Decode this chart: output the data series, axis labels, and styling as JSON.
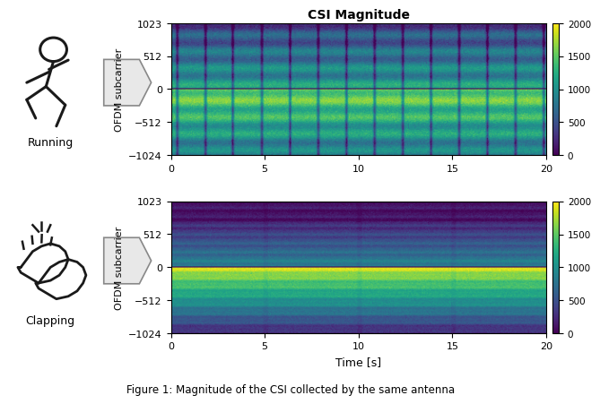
{
  "title": "CSI Magnitude",
  "xlabel": "Time [s]",
  "ylabel": "OFDM subcarrier",
  "xlim": [
    0,
    20
  ],
  "ylim": [
    -1024,
    1023
  ],
  "yticks": [
    -1024,
    -512,
    0,
    512,
    1023
  ],
  "xticks": [
    0,
    5,
    10,
    15,
    20
  ],
  "colormap": "viridis",
  "vmin": 0,
  "vmax": 2000,
  "colorbar_ticks": [
    0,
    500,
    1000,
    1500,
    2000
  ],
  "label_running": "Running",
  "label_clapping": "Clapping",
  "fig_caption": "Figure 1: Magnitude of the CSI collected by the same antenna",
  "background_color": "#ffffff",
  "n_time": 400,
  "n_subcarrier": 512
}
